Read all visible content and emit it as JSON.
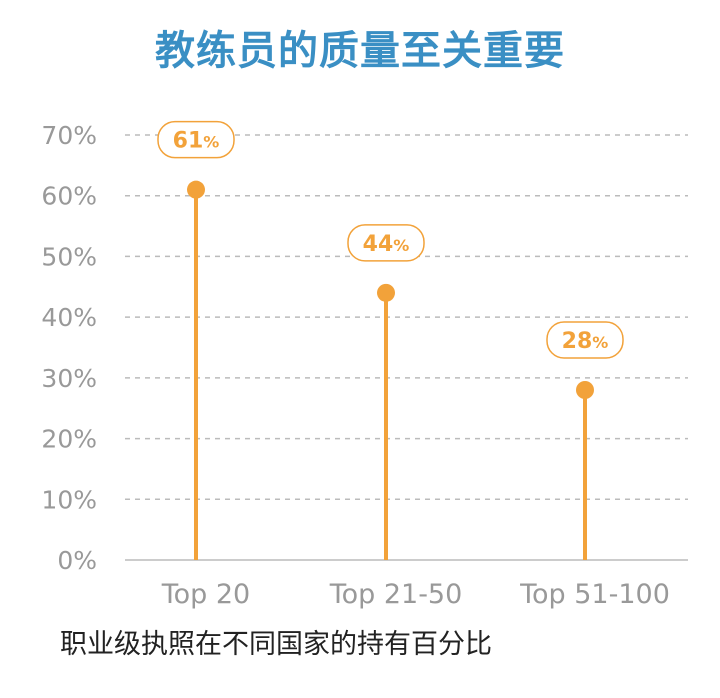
{
  "title": "教练员的质量至关重要",
  "caption": "职业级执照在不同国家的持有百分比",
  "colors": {
    "accent": "#f2a23a",
    "title": "#3a8fc4",
    "axis_text": "#999999"
  },
  "chart_data": {
    "type": "lollipop",
    "title": "教练员的质量至关重要",
    "categories": [
      "Top 20",
      "Top 21-50",
      "Top 51-100"
    ],
    "values": [
      61,
      44,
      28
    ],
    "data_labels": [
      "61",
      "44",
      "28"
    ],
    "data_label_unit": "%",
    "ylim": [
      0,
      70
    ],
    "yticks": [
      0,
      10,
      20,
      30,
      40,
      50,
      60,
      70
    ],
    "ytick_labels": [
      "0%",
      "10%",
      "20%",
      "30%",
      "40%",
      "50%",
      "60%",
      "70%"
    ],
    "grid": true,
    "legend": "none"
  }
}
